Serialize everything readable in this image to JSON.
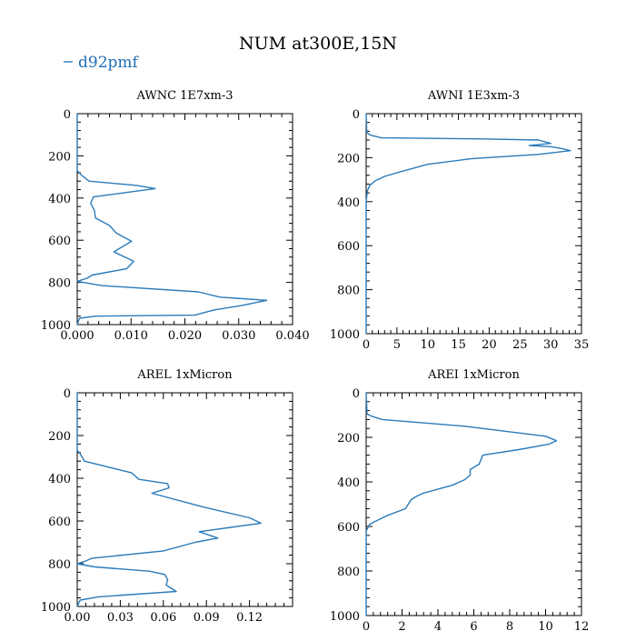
{
  "figure": {
    "title": "NUM at300E,15N",
    "legend": [
      {
        "label": "d92pmf",
        "color": "#2b7bba"
      }
    ]
  },
  "chart_data": [
    {
      "type": "line",
      "title": "AWNC  1E7xm-3",
      "xlim": [
        0,
        0.04
      ],
      "ylim": [
        1000,
        0
      ],
      "xticks": [
        0,
        0.01,
        0.02,
        0.03,
        0.04
      ],
      "xtick_labels": [
        "0.000",
        "0.010",
        "0.020",
        "0.030",
        "0.040"
      ],
      "yticks": [
        0,
        200,
        400,
        600,
        800,
        1000
      ],
      "ytick_labels": [
        "0",
        "200",
        "400",
        "600",
        "800",
        "1000"
      ],
      "series": [
        {
          "name": "d92pmf",
          "color": "#2b7bba",
          "x": [
            0,
            0,
            0.0005,
            0.0012,
            0.0022,
            0.011,
            0.0145,
            0.003,
            0.0025,
            0.0032,
            0.0034,
            0.006,
            0.0072,
            0.0101,
            0.0068,
            0.0105,
            0.0092,
            0.0028,
            0.0018,
            0,
            0.0045,
            0.0225,
            0.0265,
            0.0352,
            0.0305,
            0.0255,
            0.0218,
            0.0035,
            0.0004,
            0
          ],
          "y": [
            0,
            270,
            285,
            300,
            320,
            340,
            355,
            395,
            425,
            460,
            495,
            530,
            565,
            605,
            655,
            700,
            735,
            765,
            780,
            795,
            815,
            845,
            870,
            885,
            910,
            930,
            955,
            960,
            970,
            1000
          ]
        }
      ]
    },
    {
      "type": "line",
      "title": "AWNI  1E3xm-3",
      "xlim": [
        0,
        35
      ],
      "ylim": [
        1000,
        0
      ],
      "xticks": [
        0,
        5,
        10,
        15,
        20,
        25,
        30,
        35
      ],
      "xtick_labels": [
        "0",
        "5",
        "10",
        "15",
        "20",
        "25",
        "30",
        "35"
      ],
      "yticks": [
        0,
        200,
        400,
        600,
        800,
        1000
      ],
      "ytick_labels": [
        "0",
        "200",
        "400",
        "600",
        "800",
        "1000"
      ],
      "series": [
        {
          "name": "d92pmf",
          "color": "#2b7bba",
          "x": [
            0,
            0.1,
            0.5,
            1,
            2.5,
            19,
            28,
            30,
            26.5,
            30,
            32,
            33.2,
            28,
            17,
            10,
            5.5,
            3,
            1.5,
            0.6,
            0.2,
            0,
            0
          ],
          "y": [
            0,
            85,
            95,
            100,
            110,
            115,
            120,
            135,
            145,
            150,
            160,
            168,
            185,
            205,
            230,
            265,
            285,
            305,
            325,
            350,
            400,
            1000
          ]
        }
      ]
    },
    {
      "type": "line",
      "title": "AREL  1xMicron",
      "xlim": [
        0,
        0.15
      ],
      "ylim": [
        1000,
        0
      ],
      "xticks": [
        0,
        0.03,
        0.06,
        0.09,
        0.12
      ],
      "xtick_labels": [
        "0.00",
        "0.03",
        "0.06",
        "0.09",
        "0.12"
      ],
      "yticks": [
        0,
        200,
        400,
        600,
        800,
        1000
      ],
      "ytick_labels": [
        "0",
        "200",
        "400",
        "600",
        "800",
        "1000"
      ],
      "series": [
        {
          "name": "d92pmf",
          "color": "#2b7bba",
          "x": [
            0,
            0,
            0.002,
            0.005,
            0.038,
            0.043,
            0.063,
            0.064,
            0.052,
            0.088,
            0.12,
            0.128,
            0.085,
            0.098,
            0.082,
            0.06,
            0.01,
            0.005,
            0,
            0.012,
            0.05,
            0.061,
            0.063,
            0.062,
            0.069,
            0.015,
            0.002,
            0
          ],
          "y": [
            0,
            270,
            285,
            320,
            375,
            405,
            425,
            445,
            470,
            535,
            585,
            610,
            650,
            680,
            700,
            740,
            775,
            790,
            800,
            815,
            835,
            850,
            875,
            900,
            930,
            955,
            970,
            1000
          ]
        }
      ]
    },
    {
      "type": "line",
      "title": "AREI  1xMicron",
      "xlim": [
        0,
        12
      ],
      "ylim": [
        1000,
        0
      ],
      "xticks": [
        0,
        2,
        4,
        6,
        8,
        10,
        12
      ],
      "xtick_labels": [
        "0",
        "2",
        "4",
        "6",
        "8",
        "10",
        "12"
      ],
      "yticks": [
        0,
        200,
        400,
        600,
        800,
        1000
      ],
      "ytick_labels": [
        "0",
        "200",
        "400",
        "600",
        "800",
        "1000"
      ],
      "series": [
        {
          "name": "d92pmf",
          "color": "#2b7bba",
          "x": [
            0,
            0.05,
            0.3,
            0.9,
            5.5,
            10,
            10.6,
            10.2,
            8.5,
            6.5,
            6.3,
            5.8,
            5.8,
            5.5,
            4.8,
            3.2,
            2.8,
            2.5,
            2.2,
            1.2,
            0.2,
            0,
            0
          ],
          "y": [
            0,
            95,
            105,
            120,
            150,
            195,
            215,
            230,
            255,
            280,
            320,
            345,
            370,
            390,
            415,
            450,
            465,
            480,
            520,
            550,
            590,
            620,
            1000
          ]
        }
      ]
    }
  ]
}
